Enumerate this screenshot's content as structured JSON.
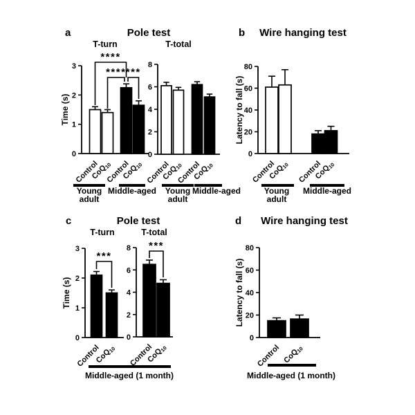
{
  "figure": {
    "background": "#ffffff",
    "ink_color": "#000000",
    "bar_fill_white": "#ffffff",
    "bar_fill_black": "#000000",
    "panels": [
      {
        "id": "a",
        "letter": "a",
        "title": "Pole test"
      },
      {
        "id": "b",
        "letter": "b",
        "title": "Wire hanging test"
      },
      {
        "id": "c",
        "letter": "c",
        "title": "Pole test",
        "bottom_label": "Middle-aged (1 month)"
      },
      {
        "id": "d",
        "letter": "d",
        "title": "Wire hanging test",
        "bottom_label": "Middle-aged (1 month)"
      }
    ]
  },
  "chart_data": [
    {
      "id": "a-t-turn",
      "panel": "a",
      "type": "bar",
      "title": "T-turn",
      "ylabel": "Time (s)",
      "ylim": [
        0,
        3
      ],
      "yticks": [
        0,
        1,
        2,
        3
      ],
      "grid": false,
      "categories": [
        "Control",
        "CoQ10",
        "Control",
        "CoQ10"
      ],
      "values": [
        1.5,
        1.4,
        2.25,
        1.65
      ],
      "errors": [
        0.1,
        0.1,
        0.13,
        0.15
      ],
      "bar_fills": [
        "#ffffff",
        "#ffffff",
        "#000000",
        "#000000"
      ],
      "groups": [
        {
          "label": "Young\nadult",
          "bars": [
            0,
            1
          ]
        },
        {
          "label": "Middle-aged",
          "bars": [
            2,
            3
          ]
        }
      ],
      "significance": [
        {
          "from": 0,
          "to": 2,
          "label": "****"
        },
        {
          "from": 1,
          "to": 2,
          "label": "****"
        },
        {
          "from": 2,
          "to": 3,
          "label": "***"
        }
      ]
    },
    {
      "id": "a-t-total",
      "panel": "a",
      "type": "bar",
      "title": "T-total",
      "ylabel": null,
      "ylim": [
        0,
        8
      ],
      "yticks": [
        0,
        2,
        4,
        6,
        8
      ],
      "grid": false,
      "categories": [
        "Control",
        "CoQ10",
        "Control",
        "CoQ10"
      ],
      "values": [
        6.1,
        5.7,
        6.2,
        5.1
      ],
      "errors": [
        0.3,
        0.25,
        0.25,
        0.25
      ],
      "bar_fills": [
        "#ffffff",
        "#ffffff",
        "#000000",
        "#000000"
      ],
      "groups": [
        {
          "label": "Young\nadult",
          "bars": [
            0,
            1
          ]
        },
        {
          "label": "Middle-aged",
          "bars": [
            2,
            3
          ]
        }
      ],
      "significance": []
    },
    {
      "id": "b",
      "panel": "b",
      "type": "bar",
      "title": null,
      "ylabel": "Latency to fall (s)",
      "ylim": [
        0,
        80
      ],
      "yticks": [
        0,
        20,
        40,
        60,
        80
      ],
      "grid": false,
      "categories": [
        "Control",
        "CoQ10",
        "Control",
        "CoQ10"
      ],
      "values": [
        61,
        63,
        18,
        21
      ],
      "errors": [
        10,
        14,
        3,
        4
      ],
      "bar_fills": [
        "#ffffff",
        "#ffffff",
        "#000000",
        "#000000"
      ],
      "groups": [
        {
          "label": "Young\nadult",
          "bars": [
            0,
            1
          ]
        },
        {
          "label": "Middle-aged",
          "bars": [
            2,
            3
          ]
        }
      ],
      "significance": []
    },
    {
      "id": "c-t-turn",
      "panel": "c",
      "type": "bar",
      "title": "T-turn",
      "ylabel": "Time (s)",
      "ylim": [
        0,
        3
      ],
      "yticks": [
        0,
        1,
        2,
        3
      ],
      "grid": false,
      "categories": [
        "Control",
        "CoQ10"
      ],
      "values": [
        2.1,
        1.5
      ],
      "errors": [
        0.12,
        0.1
      ],
      "bar_fills": [
        "#000000",
        "#000000"
      ],
      "groups": [],
      "significance": [
        {
          "from": 0,
          "to": 1,
          "label": "***"
        }
      ]
    },
    {
      "id": "c-t-total",
      "panel": "c",
      "type": "bar",
      "title": "T-total",
      "ylabel": null,
      "ylim": [
        0,
        8
      ],
      "yticks": [
        0,
        2,
        4,
        6,
        8
      ],
      "grid": false,
      "categories": [
        "Control",
        "CoQ10"
      ],
      "values": [
        6.5,
        4.8
      ],
      "errors": [
        0.38,
        0.32
      ],
      "bar_fills": [
        "#000000",
        "#000000"
      ],
      "groups": [],
      "significance": [
        {
          "from": 0,
          "to": 1,
          "label": "***"
        }
      ]
    },
    {
      "id": "d",
      "panel": "d",
      "type": "bar",
      "title": null,
      "ylabel": "Latency to fall (s)",
      "ylim": [
        0,
        80
      ],
      "yticks": [
        0,
        20,
        40,
        60,
        80
      ],
      "grid": false,
      "categories": [
        "Control",
        "CoQ10"
      ],
      "values": [
        15,
        16.5
      ],
      "errors": [
        2.5,
        3.5
      ],
      "bar_fills": [
        "#000000",
        "#000000"
      ],
      "groups": [],
      "significance": []
    }
  ]
}
